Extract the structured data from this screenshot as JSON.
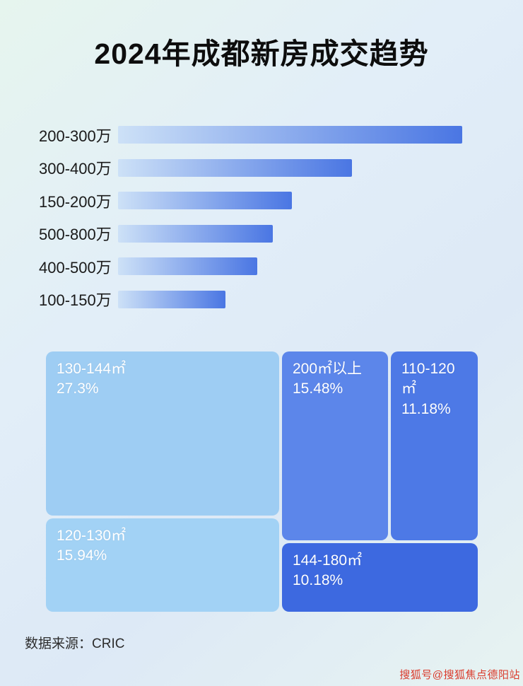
{
  "page": {
    "title": "2024年成都新房成交趋势",
    "source": "数据来源：CRIC",
    "watermark": "搜狐号@搜狐焦点德阳站"
  },
  "chart_data": [
    {
      "type": "bar",
      "orientation": "horizontal",
      "categories": [
        "200-300万",
        "300-400万",
        "150-200万",
        "500-800万",
        "400-500万",
        "100-150万"
      ],
      "values": [
        100,
        68,
        50.5,
        45,
        40.5,
        31.3
      ],
      "value_unit": "relative bar length, % of longest bar (no numeric axis shown)",
      "xlim": [
        0,
        100
      ],
      "grid": false,
      "legend": false,
      "bar_gradient": [
        "#cde1f7",
        "#4a76e3"
      ]
    },
    {
      "type": "treemap",
      "blocks": [
        {
          "label": "130-144㎡",
          "value": 27.3,
          "display": "27.3%",
          "color": "#9ecdf3"
        },
        {
          "label": "200㎡以上",
          "value": 15.48,
          "display": "15.48%",
          "color": "#5c86ea"
        },
        {
          "label": "110-120㎡",
          "value": 11.18,
          "display": "11.18%",
          "color": "#4d79e6"
        },
        {
          "label": "120-130㎡",
          "value": 15.94,
          "display": "15.94%",
          "color": "#a2d2f5"
        },
        {
          "label": "144-180㎡",
          "value": 10.18,
          "display": "10.18%",
          "color": "#3d69e0"
        }
      ]
    }
  ]
}
